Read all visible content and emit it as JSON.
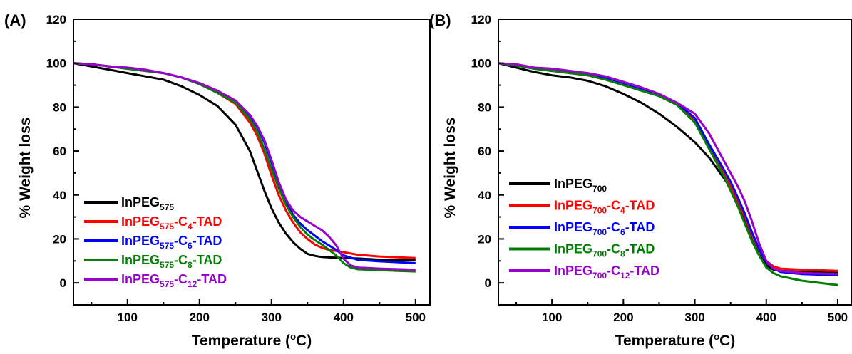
{
  "chart_data": [
    {
      "type": "line",
      "panel_label": "(A)",
      "xlabel": "Temperature (",
      "xlabel_sup": "o",
      "xlabel_tail": "C)",
      "ylabel": "% Weight loss",
      "xlim": [
        25,
        520
      ],
      "ylim": [
        -10,
        120
      ],
      "xticks": [
        100,
        200,
        300,
        400,
        500
      ],
      "yticks": [
        0,
        20,
        40,
        60,
        80,
        100,
        120
      ],
      "legend_position": "bottom-left",
      "series": [
        {
          "name": "InPEG575",
          "label_parts": [
            [
              "InPEG",
              ""
            ],
            [
              "575",
              "sub"
            ]
          ],
          "color": "#000000",
          "x": [
            25,
            50,
            75,
            100,
            125,
            150,
            175,
            200,
            225,
            250,
            270,
            280,
            290,
            300,
            310,
            320,
            330,
            340,
            350,
            360,
            370,
            380,
            390,
            400,
            420,
            450,
            500
          ],
          "y": [
            100,
            98.5,
            97,
            95.5,
            94,
            92.5,
            89.5,
            85.5,
            80.5,
            72,
            60,
            51,
            42,
            34,
            27.5,
            22.5,
            18.5,
            15.5,
            13.2,
            12.3,
            11.8,
            11.6,
            11.5,
            11.3,
            11.1,
            10.6,
            10.3
          ]
        },
        {
          "name": "InPEG575-C4-TAD",
          "label_parts": [
            [
              "InPEG",
              ""
            ],
            [
              "575",
              "sub"
            ],
            [
              "-C",
              ""
            ],
            [
              "4",
              "sub"
            ],
            [
              "-TAD",
              ""
            ]
          ],
          "color": "#ff0000",
          "x": [
            25,
            50,
            75,
            100,
            125,
            150,
            175,
            200,
            225,
            250,
            270,
            280,
            290,
            300,
            310,
            320,
            330,
            340,
            350,
            360,
            370,
            380,
            390,
            400,
            420,
            450,
            500
          ],
          "y": [
            100,
            99.5,
            98.5,
            97.5,
            96.5,
            95.5,
            93.5,
            90.5,
            86.5,
            81.5,
            73,
            67,
            59,
            49,
            40,
            33,
            27.5,
            23,
            20,
            17.5,
            16,
            15,
            14.5,
            14,
            12.8,
            12,
            11.3
          ]
        },
        {
          "name": "InPEG575-C6-TAD",
          "label_parts": [
            [
              "InPEG",
              ""
            ],
            [
              "575",
              "sub"
            ],
            [
              "-C",
              ""
            ],
            [
              "6",
              "sub"
            ],
            [
              "-TAD",
              ""
            ]
          ],
          "color": "#0000ff",
          "x": [
            25,
            50,
            75,
            100,
            125,
            150,
            175,
            200,
            225,
            250,
            270,
            280,
            290,
            300,
            310,
            320,
            330,
            340,
            350,
            360,
            370,
            380,
            390,
            400,
            420,
            450,
            500
          ],
          "y": [
            100,
            99.5,
            98.5,
            97.5,
            96.5,
            95.5,
            93.5,
            90.5,
            87,
            83,
            76,
            71,
            64,
            55,
            45,
            37,
            31,
            27,
            24,
            21.5,
            19,
            17,
            15,
            12.5,
            10.5,
            9.8,
            9
          ]
        },
        {
          "name": "InPEG575-C8-TAD",
          "label_parts": [
            [
              "InPEG",
              ""
            ],
            [
              "575",
              "sub"
            ],
            [
              "-C",
              ""
            ],
            [
              "8",
              "sub"
            ],
            [
              "-TAD",
              ""
            ]
          ],
          "color": "#008000",
          "x": [
            25,
            50,
            75,
            100,
            125,
            150,
            175,
            200,
            225,
            250,
            270,
            280,
            290,
            300,
            310,
            320,
            330,
            340,
            350,
            360,
            370,
            380,
            390,
            400,
            410,
            420,
            450,
            500
          ],
          "y": [
            100,
            99.5,
            98.5,
            97.5,
            96.5,
            95.5,
            93.5,
            90.5,
            86.5,
            82,
            74.5,
            69,
            61,
            52,
            43,
            35.5,
            30,
            25.5,
            22,
            19.5,
            17.5,
            15,
            12.5,
            9,
            7,
            6.2,
            5.8,
            5.2
          ]
        },
        {
          "name": "InPEG575-C12-TAD",
          "label_parts": [
            [
              "InPEG",
              ""
            ],
            [
              "575",
              "sub"
            ],
            [
              "-C",
              ""
            ],
            [
              "12",
              "sub"
            ],
            [
              "-TAD",
              ""
            ]
          ],
          "color": "#9900cc",
          "x": [
            25,
            50,
            75,
            100,
            125,
            150,
            175,
            200,
            225,
            250,
            270,
            280,
            290,
            300,
            310,
            320,
            330,
            340,
            350,
            360,
            370,
            380,
            390,
            400,
            410,
            420,
            450,
            500
          ],
          "y": [
            100,
            99.5,
            98.5,
            98,
            97,
            95.5,
            93.5,
            91,
            87.5,
            83,
            76.5,
            71.5,
            65,
            56,
            46,
            38,
            33,
            30,
            28,
            26,
            24,
            21,
            17,
            11,
            8,
            7,
            6.5,
            6
          ]
        }
      ]
    },
    {
      "type": "line",
      "panel_label": "(B)",
      "xlabel": "Temperature (",
      "xlabel_sup": "o",
      "xlabel_tail": "C)",
      "ylabel": "% Weight loss",
      "xlim": [
        25,
        520
      ],
      "ylim": [
        -10,
        120
      ],
      "xticks": [
        100,
        200,
        300,
        400,
        500
      ],
      "yticks": [
        0,
        20,
        40,
        60,
        80,
        100,
        120
      ],
      "legend_position": "bottom-left",
      "series": [
        {
          "name": "InPEG700",
          "label_parts": [
            [
              "InPEG",
              ""
            ],
            [
              "700",
              "sub"
            ]
          ],
          "color": "#000000",
          "x": [
            25,
            50,
            75,
            100,
            125,
            150,
            175,
            200,
            225,
            250,
            275,
            300,
            320,
            340,
            350,
            360,
            370,
            380,
            390,
            400,
            410,
            420,
            450,
            500
          ],
          "y": [
            100,
            98,
            96,
            94.5,
            93.5,
            92,
            89.5,
            86,
            82,
            77,
            71,
            64,
            57,
            48,
            43,
            36,
            28,
            19.5,
            13,
            8,
            6,
            5.5,
            5,
            4.5
          ]
        },
        {
          "name": "InPEG700-C4-TAD",
          "label_parts": [
            [
              "InPEG",
              ""
            ],
            [
              "700",
              "sub"
            ],
            [
              "-C",
              ""
            ],
            [
              "4",
              "sub"
            ],
            [
              "-TAD",
              ""
            ]
          ],
          "color": "#ff0000",
          "x": [
            25,
            50,
            75,
            100,
            125,
            150,
            175,
            200,
            225,
            250,
            275,
            300,
            320,
            340,
            350,
            360,
            370,
            380,
            390,
            400,
            410,
            420,
            450,
            500
          ],
          "y": [
            100,
            99,
            97.5,
            96.5,
            95.5,
            94.5,
            92.5,
            90,
            88,
            85.5,
            82,
            74,
            62,
            50,
            44,
            37.5,
            30,
            22,
            15,
            10,
            7.5,
            6.5,
            6,
            5.5
          ]
        },
        {
          "name": "InPEG700-C6-TAD",
          "label_parts": [
            [
              "InPEG",
              ""
            ],
            [
              "700",
              "sub"
            ],
            [
              "-C",
              ""
            ],
            [
              "6",
              "sub"
            ],
            [
              "-TAD",
              ""
            ]
          ],
          "color": "#0000ff",
          "x": [
            25,
            50,
            75,
            100,
            125,
            150,
            175,
            200,
            225,
            250,
            275,
            300,
            320,
            340,
            350,
            360,
            370,
            380,
            390,
            400,
            410,
            420,
            450,
            500
          ],
          "y": [
            100,
            99,
            97.5,
            96.5,
            96,
            95,
            93,
            90.5,
            88,
            85.5,
            82,
            75,
            63,
            52,
            46,
            39,
            31.5,
            23,
            15.5,
            9.5,
            6.5,
            5,
            4,
            3.5
          ]
        },
        {
          "name": "InPEG700-C8-TAD",
          "label_parts": [
            [
              "InPEG",
              ""
            ],
            [
              "700",
              "sub"
            ],
            [
              "-C",
              ""
            ],
            [
              "8",
              "sub"
            ],
            [
              "-TAD",
              ""
            ]
          ],
          "color": "#008000",
          "x": [
            25,
            50,
            75,
            100,
            125,
            150,
            175,
            200,
            225,
            250,
            275,
            300,
            320,
            340,
            350,
            360,
            370,
            380,
            390,
            400,
            410,
            420,
            450,
            500
          ],
          "y": [
            100,
            99,
            97.5,
            96.5,
            95.5,
            94.5,
            92.5,
            90,
            87.5,
            85,
            81,
            73,
            61,
            49,
            42,
            35,
            27,
            19,
            12.5,
            7,
            4.5,
            3,
            1,
            -1
          ]
        },
        {
          "name": "InPEG700-C12-TAD",
          "label_parts": [
            [
              "InPEG",
              ""
            ],
            [
              "700",
              "sub"
            ],
            [
              "-C",
              ""
            ],
            [
              "12",
              "sub"
            ],
            [
              "-TAD",
              ""
            ]
          ],
          "color": "#9900cc",
          "x": [
            25,
            50,
            75,
            100,
            125,
            150,
            175,
            200,
            225,
            250,
            275,
            300,
            320,
            340,
            350,
            360,
            370,
            380,
            390,
            400,
            410,
            420,
            450,
            500
          ],
          "y": [
            100,
            99.5,
            98,
            97.5,
            96.5,
            95.5,
            94,
            91.5,
            89,
            86,
            82,
            77,
            68,
            56,
            50,
            44,
            37,
            28,
            18,
            10,
            6.5,
            5.5,
            4.5,
            4
          ]
        }
      ]
    }
  ]
}
